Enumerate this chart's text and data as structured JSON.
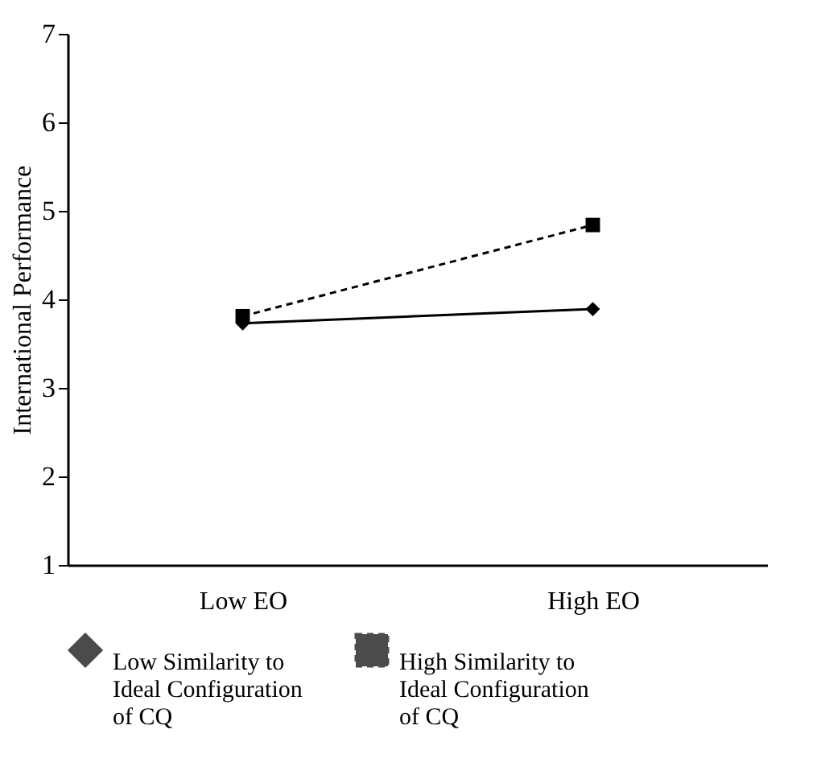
{
  "chart_data": {
    "type": "line",
    "ylabel": "International Performance",
    "categories": [
      "Low EO",
      "High EO"
    ],
    "series": [
      {
        "name": "Low Similarity to Ideal Configuration of CQ",
        "color": "#000000",
        "values": [
          3.73,
          3.89
        ],
        "marker": "diamond",
        "line_style": "solid"
      },
      {
        "name": "High Similarity to Ideal Configuration of CQ",
        "color": "#000000",
        "values": [
          3.81,
          4.84
        ],
        "marker": "square",
        "line_style": "dashed"
      }
    ],
    "ylim": [
      1,
      7
    ],
    "yticks": [
      1,
      2,
      3,
      4,
      5,
      6,
      7
    ],
    "grid": false,
    "legend": "bottom"
  }
}
